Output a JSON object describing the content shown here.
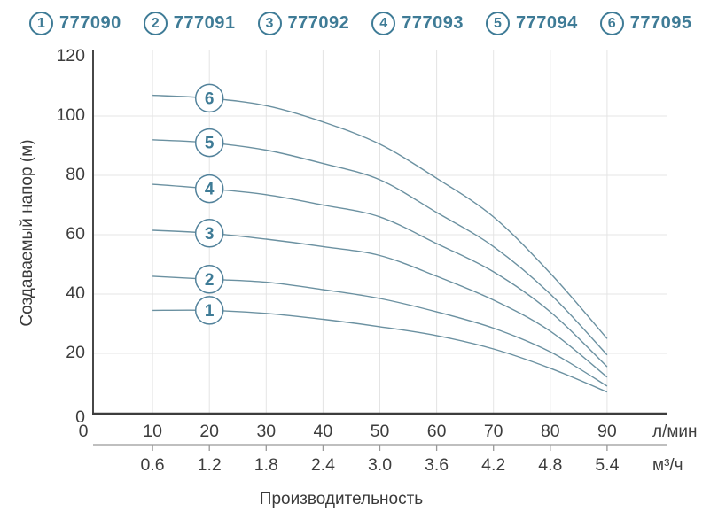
{
  "legend": {
    "items": [
      {
        "num": "1",
        "code": "777090"
      },
      {
        "num": "2",
        "code": "777091"
      },
      {
        "num": "3",
        "code": "777092"
      },
      {
        "num": "4",
        "code": "777093"
      },
      {
        "num": "5",
        "code": "777094"
      },
      {
        "num": "6",
        "code": "777095"
      }
    ]
  },
  "y_axis": {
    "title": "Создаваемый напор (м)",
    "ticks": [
      "120",
      "100",
      "80",
      "60",
      "40",
      "20",
      "0"
    ]
  },
  "x_axis_lmin": {
    "unit": "л/мин",
    "ticks": [
      "0",
      "10",
      "20",
      "30",
      "40",
      "50",
      "60",
      "70",
      "80",
      "90"
    ]
  },
  "x_axis_m3h": {
    "unit": "м³/ч",
    "ticks": [
      "0.6",
      "1.2",
      "1.8",
      "2.4",
      "3.0",
      "3.6",
      "4.2",
      "4.8",
      "5.4"
    ]
  },
  "colors": {
    "accent": "#3e7b96",
    "curve": "#6b91a1",
    "badge_stroke": "#52829b",
    "grid": "#e4e4e4",
    "axis": "#3d3d3d",
    "secondary_axis": "#999999"
  },
  "chart_data": {
    "type": "line",
    "title": "",
    "xlabel": "Производительность",
    "ylabel": "Создаваемый напор (м)",
    "x_unit_primary": "л/мин",
    "x_unit_secondary": "м³/ч",
    "xlim": [
      0,
      100
    ],
    "ylim": [
      0,
      120
    ],
    "grid": true,
    "legend_position": "top",
    "x": [
      10,
      20,
      30,
      40,
      50,
      60,
      70,
      80,
      90
    ],
    "x_secondary": [
      0.6,
      1.2,
      1.8,
      2.4,
      3.0,
      3.6,
      4.2,
      4.8,
      5.4
    ],
    "badge_at_x": 20,
    "series": [
      {
        "label": "1",
        "code": "777090",
        "values": [
          34.5,
          34.5,
          33.5,
          31.5,
          29,
          26,
          21.5,
          15,
          7
        ]
      },
      {
        "label": "2",
        "code": "777091",
        "values": [
          46,
          45,
          44,
          41.5,
          38.5,
          34,
          28.5,
          20.5,
          9
        ]
      },
      {
        "label": "3",
        "code": "777092",
        "values": [
          61.5,
          60.5,
          58.5,
          56,
          53,
          46,
          38,
          27.5,
          12
        ]
      },
      {
        "label": "4",
        "code": "777093",
        "values": [
          77,
          75.5,
          73.5,
          70,
          66,
          57,
          47.5,
          34,
          15.5
        ]
      },
      {
        "label": "5",
        "code": "777094",
        "values": [
          92,
          91,
          88.5,
          84,
          78.5,
          67.5,
          56,
          40,
          19.5
        ]
      },
      {
        "label": "6",
        "code": "777095",
        "values": [
          107,
          106,
          103.5,
          98,
          90.5,
          79,
          66,
          47,
          25
        ]
      }
    ]
  }
}
